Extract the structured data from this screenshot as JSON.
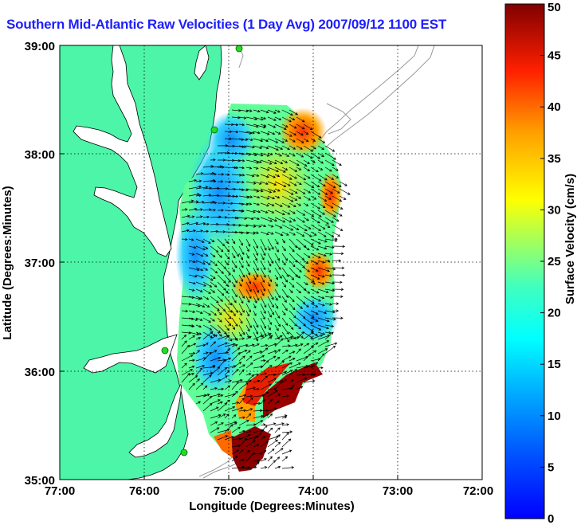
{
  "title": "Southern Mid-Atlantic Raw Velocities (1 Day Avg) 2007/09/12 1100 EST",
  "axes": {
    "xlabel": "Longitude (Degrees:Minutes)",
    "ylabel": "Latitude (Degrees:Minutes)",
    "x_ticks": [
      "77:00",
      "76:00",
      "75:00",
      "74:00",
      "73:00",
      "72:00"
    ],
    "y_ticks": [
      "39:00",
      "38:00",
      "37:00",
      "36:00",
      "35:00"
    ]
  },
  "colorbar": {
    "label": "Surface Velocity (cm/s)",
    "ticks": [
      "50",
      "45",
      "40",
      "35",
      "30",
      "25",
      "20",
      "15",
      "10",
      "5",
      "0"
    ],
    "range": [
      0,
      50
    ],
    "colormap": "jet"
  },
  "colors": {
    "land": "#4cf5a8",
    "water": "#ffffff",
    "coast": "#000000",
    "bathymetry": "#999999",
    "title": "#1e1eff",
    "stations": "#22dd22"
  },
  "stations_count": 4
}
